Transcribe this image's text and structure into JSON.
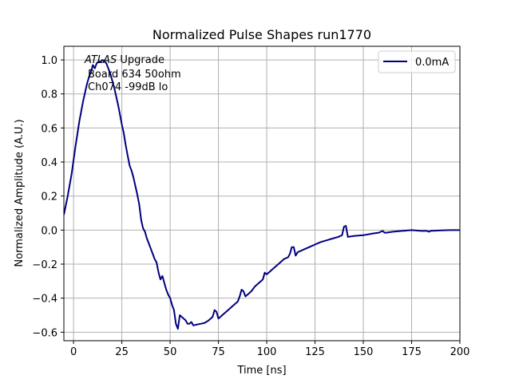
{
  "chart_data": {
    "type": "line",
    "title": "Normalized Pulse Shapes run1770",
    "xlabel": "Time [ns]",
    "ylabel": "Normalized Amplitude (A.U.)",
    "xlim": [
      -5,
      200
    ],
    "ylim": [
      -0.65,
      1.08
    ],
    "xticks": [
      0,
      25,
      50,
      75,
      100,
      125,
      150,
      175,
      200
    ],
    "yticks": [
      -0.6,
      -0.4,
      -0.2,
      0.0,
      0.2,
      0.4,
      0.6,
      0.8,
      1.0
    ],
    "xtick_labels": [
      "0",
      "25",
      "50",
      "75",
      "100",
      "125",
      "150",
      "175",
      "200"
    ],
    "ytick_labels": [
      "−0.6",
      "−0.4",
      "−0.2",
      "0.0",
      "0.2",
      "0.4",
      "0.6",
      "0.8",
      "1.0"
    ],
    "grid": true,
    "legend_position": "top-right",
    "annotations": {
      "atlas": "ATLAS",
      "upgrade": " Upgrade",
      "board": "Board 634 50ohm",
      "channel": "Ch074 -99dB lo"
    },
    "series": [
      {
        "name": "0.0mA",
        "color": "#00007f",
        "x": [
          -5,
          -3,
          -1,
          1,
          3,
          5,
          6,
          7,
          8,
          9,
          10,
          11,
          12,
          13,
          14,
          15,
          16,
          17,
          18,
          19,
          20,
          21,
          22,
          23,
          24,
          25,
          26,
          27,
          28,
          29,
          30,
          31,
          32,
          33,
          34,
          35,
          36,
          37,
          38,
          39,
          40,
          41,
          42,
          43,
          44,
          45,
          46,
          47,
          48,
          49,
          50,
          51,
          52,
          53,
          54,
          55,
          56,
          57,
          58,
          59,
          60,
          61,
          62,
          64,
          66,
          68,
          70,
          72,
          73,
          74,
          75,
          76,
          78,
          80,
          82,
          84,
          85,
          86,
          87,
          88,
          89,
          90,
          92,
          94,
          96,
          98,
          99,
          100,
          101,
          103,
          105,
          107,
          109,
          111,
          112,
          113,
          114,
          115,
          116,
          118,
          120,
          122,
          125,
          128,
          131,
          134,
          137,
          139,
          140,
          141,
          142,
          145,
          150,
          155,
          158,
          159,
          160,
          161,
          162,
          165,
          170,
          175,
          180,
          183,
          184,
          185,
          186,
          190,
          195,
          200
        ],
        "y": [
          0.09,
          0.2,
          0.33,
          0.49,
          0.64,
          0.76,
          0.81,
          0.86,
          0.9,
          0.93,
          0.97,
          0.95,
          0.98,
          0.99,
          0.99,
          1.0,
          0.99,
          0.98,
          0.95,
          0.92,
          0.88,
          0.84,
          0.79,
          0.74,
          0.68,
          0.62,
          0.57,
          0.5,
          0.44,
          0.38,
          0.35,
          0.31,
          0.26,
          0.21,
          0.15,
          0.06,
          0.01,
          -0.01,
          -0.05,
          -0.08,
          -0.11,
          -0.14,
          -0.17,
          -0.19,
          -0.25,
          -0.29,
          -0.27,
          -0.31,
          -0.35,
          -0.38,
          -0.4,
          -0.44,
          -0.47,
          -0.55,
          -0.58,
          -0.5,
          -0.51,
          -0.52,
          -0.53,
          -0.55,
          -0.55,
          -0.54,
          -0.56,
          -0.555,
          -0.55,
          -0.545,
          -0.53,
          -0.51,
          -0.47,
          -0.48,
          -0.52,
          -0.51,
          -0.49,
          -0.47,
          -0.45,
          -0.43,
          -0.42,
          -0.39,
          -0.35,
          -0.36,
          -0.39,
          -0.38,
          -0.36,
          -0.33,
          -0.31,
          -0.29,
          -0.25,
          -0.26,
          -0.25,
          -0.23,
          -0.21,
          -0.19,
          -0.17,
          -0.16,
          -0.14,
          -0.1,
          -0.1,
          -0.15,
          -0.13,
          -0.12,
          -0.11,
          -0.1,
          -0.085,
          -0.07,
          -0.06,
          -0.05,
          -0.04,
          -0.03,
          0.02,
          0.025,
          -0.04,
          -0.035,
          -0.03,
          -0.02,
          -0.015,
          -0.01,
          -0.005,
          -0.015,
          -0.015,
          -0.01,
          -0.005,
          0.0,
          -0.005,
          -0.005,
          -0.01,
          -0.004,
          -0.004,
          -0.002,
          0.0,
          0.0
        ]
      }
    ]
  }
}
